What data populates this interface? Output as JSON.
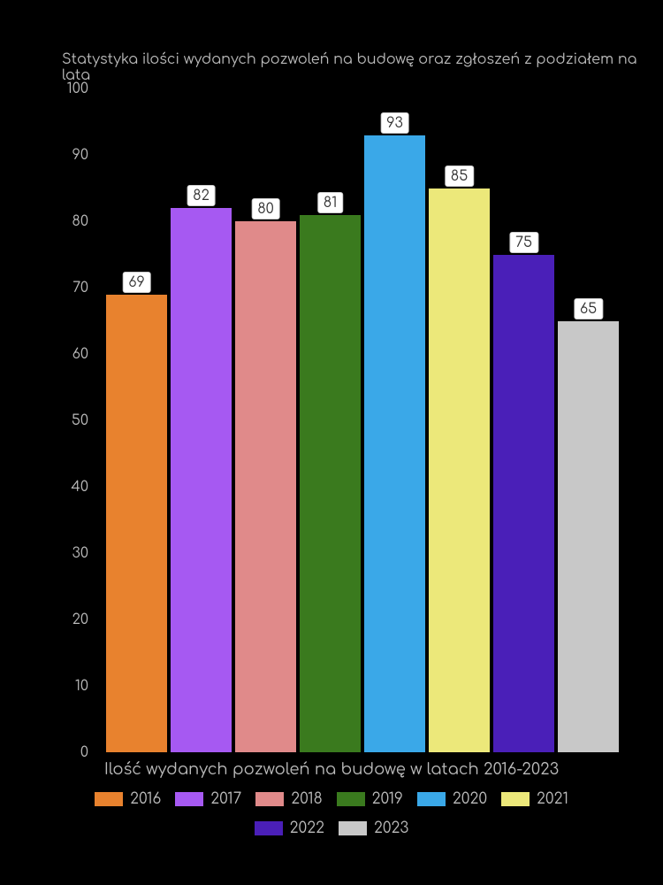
{
  "chart": {
    "type": "bar",
    "title": "Statystyka ilości wydanych pozwoleń na budowę oraz zgłoszeń z podziałem na lata",
    "title_fontsize": 16,
    "title_color": "#bbbbbb",
    "background_color": "#000000",
    "xlabel": "Ilość wydanych pozwoleń na budowę w latach 2016-2023",
    "xlabel_fontsize": 18,
    "ylim": [
      0,
      100
    ],
    "ytick_step": 10,
    "yticks": [
      {
        "pos": 0,
        "label": "0"
      },
      {
        "pos": 10,
        "label": "10"
      },
      {
        "pos": 20,
        "label": "20"
      },
      {
        "pos": 30,
        "label": "30"
      },
      {
        "pos": 40,
        "label": "40"
      },
      {
        "pos": 50,
        "label": "50"
      },
      {
        "pos": 60,
        "label": "60"
      },
      {
        "pos": 70,
        "label": "70"
      },
      {
        "pos": 80,
        "label": "80"
      },
      {
        "pos": 90,
        "label": "90"
      },
      {
        "pos": 100,
        "label": "100"
      }
    ],
    "axis_text_color": "#bbbbbb",
    "bar_label_bg": "#ffffff",
    "bar_label_text_color": "#333333",
    "bars": [
      {
        "year": "2016",
        "value": 69,
        "color": "#e8822e"
      },
      {
        "year": "2017",
        "value": 82,
        "color": "#a659f2"
      },
      {
        "year": "2018",
        "value": 80,
        "color": "#e08a8a"
      },
      {
        "year": "2019",
        "value": 81,
        "color": "#3a7a1e"
      },
      {
        "year": "2020",
        "value": 93,
        "color": "#3aa8e8"
      },
      {
        "year": "2021",
        "value": 85,
        "color": "#ece87a"
      },
      {
        "year": "2022",
        "value": 75,
        "color": "#4a1fb8"
      },
      {
        "year": "2023",
        "value": 65,
        "color": "#c8c8c8"
      }
    ]
  }
}
